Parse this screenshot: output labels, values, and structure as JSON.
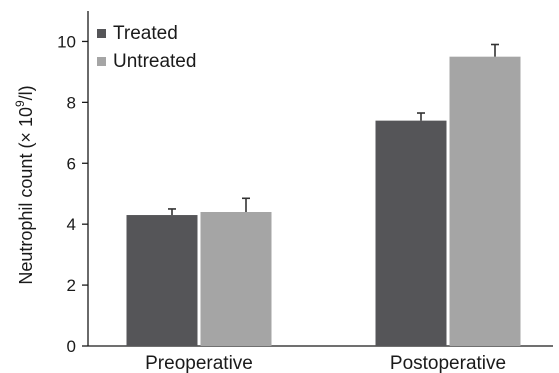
{
  "chart_data": {
    "type": "bar",
    "categories": [
      "Preoperative",
      "Postoperative"
    ],
    "series": [
      {
        "name": "Treated",
        "values": [
          4.3,
          7.4
        ],
        "errors": [
          0.2,
          0.25
        ],
        "color": "#555558"
      },
      {
        "name": "Untreated",
        "values": [
          4.4,
          9.5
        ],
        "errors": [
          0.45,
          0.4
        ],
        "color": "#a5a5a5"
      }
    ],
    "ylabel_prefix": "Neutrophil count (× 10",
    "ylabel_exponent": "9",
    "ylabel_suffix": "/l)",
    "ylim": [
      0,
      11
    ],
    "yticks": [
      "0",
      "2",
      "4",
      "6",
      "8",
      "10"
    ],
    "legend_position": "top-left",
    "grid": false
  }
}
